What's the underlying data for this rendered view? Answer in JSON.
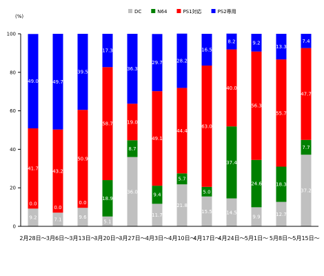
{
  "chart_data": {
    "type": "bar",
    "stacked": true,
    "unit_label": "(%)",
    "ylim": [
      0,
      100
    ],
    "yticks": [
      "0",
      "20",
      "40",
      "60",
      "80",
      "100"
    ],
    "grid": false,
    "legend_position": "top-right",
    "categories": [
      "2月28日～",
      "3月6日～",
      "3月13日～",
      "3月20日～",
      "3月27日～",
      "4月3日～",
      "4月10日～",
      "4月17日～",
      "4月24日～",
      "5月1日～",
      "5月8日～",
      "5月15日～"
    ],
    "series": [
      {
        "name": "DC",
        "color": "#c0c0c0",
        "values": [
          9.2,
          7.1,
          9.6,
          5.1,
          36.0,
          11.7,
          21.8,
          15.5,
          14.5,
          9.9,
          12.7,
          37.2
        ],
        "labels": [
          "9.2",
          "7.1",
          "9.6",
          "5.1",
          "36.0",
          "11.7",
          "21.8",
          "15.5",
          "14.5",
          "9.9",
          "12.7",
          "37.2"
        ]
      },
      {
        "name": "N64",
        "color": "#008000",
        "values": [
          0,
          0,
          0,
          18.9,
          8.7,
          9.4,
          5.7,
          5.0,
          37.4,
          24.6,
          18.3,
          7.7
        ],
        "labels": [
          "",
          "",
          "",
          "18.9",
          "8.7",
          "9.4",
          "5.7",
          "5.0",
          "37.4",
          "24.6",
          "18.3",
          "7.7"
        ]
      },
      {
        "name": "PS1対応",
        "color": "#ff0000",
        "values": [
          41.7,
          43.2,
          50.9,
          58.7,
          19.0,
          49.1,
          44.4,
          63.0,
          40.0,
          56.3,
          55.7,
          47.7
        ],
        "labels": [
          "41.7",
          "43.2",
          "50.9",
          "58.7",
          "19.0",
          "49.1",
          "44.4",
          "63.0",
          "40.0",
          "56.3",
          "55.7",
          "47.7"
        ]
      },
      {
        "name": "PS2専用",
        "color": "#0000ff",
        "values": [
          49.0,
          49.7,
          39.5,
          17.3,
          36.3,
          29.7,
          28.2,
          16.5,
          8.2,
          9.2,
          13.3,
          7.4
        ],
        "labels": [
          "49.0",
          "49.7",
          "39.5",
          "17.3",
          "36.3",
          "29.7",
          "28.2",
          "16.5",
          "8.2",
          "9.2",
          "13.3",
          "7.4"
        ]
      }
    ],
    "extra_labels": [
      {
        "category_index": 0,
        "series_index": 1,
        "value": 0.0,
        "label": "0.0"
      },
      {
        "category_index": 1,
        "series_index": 1,
        "value": 0.0,
        "label": "0.0"
      },
      {
        "category_index": 2,
        "series_index": 1,
        "value": 0.0,
        "label": "0.0"
      }
    ]
  }
}
